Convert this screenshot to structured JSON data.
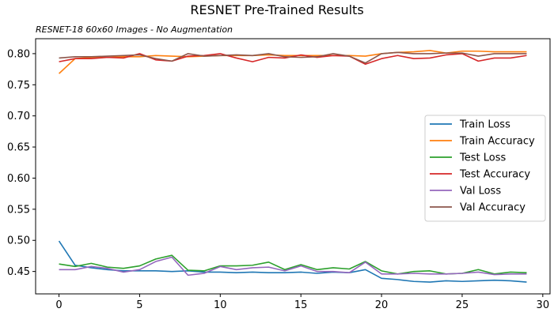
{
  "chart_data": {
    "type": "line",
    "title": "RESNET Pre-Trained Results",
    "subtitle": "RESNET-18 60x60 Images - No Augmentation",
    "xlabel": "",
    "ylabel": "",
    "xlim": [
      -1.45,
      30.45
    ],
    "ylim": [
      0.414,
      0.824
    ],
    "xticks": [
      0,
      5,
      10,
      15,
      20,
      25,
      30
    ],
    "yticks": [
      0.45,
      0.5,
      0.55,
      0.6,
      0.65,
      0.7,
      0.75,
      0.8
    ],
    "grid": false,
    "legend_position": "center-right",
    "x": [
      0,
      1,
      2,
      3,
      4,
      5,
      6,
      7,
      8,
      9,
      10,
      11,
      12,
      13,
      14,
      15,
      16,
      17,
      18,
      19,
      20,
      21,
      22,
      23,
      24,
      25,
      26,
      27,
      28,
      29
    ],
    "series": [
      {
        "name": "Train Loss",
        "color": "#1f77b4",
        "values": [
          0.499,
          0.46,
          0.456,
          0.453,
          0.451,
          0.451,
          0.451,
          0.45,
          0.451,
          0.449,
          0.449,
          0.448,
          0.449,
          0.448,
          0.448,
          0.449,
          0.447,
          0.449,
          0.448,
          0.453,
          0.439,
          0.437,
          0.434,
          0.433,
          0.435,
          0.434,
          0.435,
          0.436,
          0.435,
          0.433
        ]
      },
      {
        "name": "Train Accuracy",
        "color": "#ff7f0e",
        "values": [
          0.768,
          0.792,
          0.794,
          0.794,
          0.795,
          0.795,
          0.797,
          0.796,
          0.795,
          0.796,
          0.797,
          0.797,
          0.797,
          0.798,
          0.797,
          0.797,
          0.797,
          0.797,
          0.797,
          0.796,
          0.8,
          0.802,
          0.803,
          0.805,
          0.801,
          0.804,
          0.804,
          0.803,
          0.803,
          0.803
        ]
      },
      {
        "name": "Test Loss",
        "color": "#2ca02c",
        "values": [
          0.462,
          0.458,
          0.463,
          0.457,
          0.455,
          0.459,
          0.47,
          0.476,
          0.452,
          0.451,
          0.459,
          0.459,
          0.46,
          0.465,
          0.453,
          0.461,
          0.453,
          0.456,
          0.454,
          0.466,
          0.451,
          0.446,
          0.45,
          0.451,
          0.446,
          0.447,
          0.453,
          0.446,
          0.449,
          0.448
        ]
      },
      {
        "name": "Test Accuracy",
        "color": "#d62728",
        "values": [
          0.787,
          0.792,
          0.792,
          0.794,
          0.793,
          0.8,
          0.79,
          0.788,
          0.796,
          0.797,
          0.8,
          0.793,
          0.787,
          0.794,
          0.793,
          0.798,
          0.794,
          0.797,
          0.796,
          0.783,
          0.792,
          0.797,
          0.792,
          0.793,
          0.798,
          0.8,
          0.788,
          0.793,
          0.793,
          0.797
        ]
      },
      {
        "name": "Val Loss",
        "color": "#9467bd",
        "values": [
          0.453,
          0.453,
          0.458,
          0.455,
          0.449,
          0.453,
          0.466,
          0.473,
          0.444,
          0.447,
          0.458,
          0.453,
          0.456,
          0.457,
          0.451,
          0.459,
          0.45,
          0.45,
          0.448,
          0.465,
          0.446,
          0.446,
          0.447,
          0.446,
          0.446,
          0.447,
          0.449,
          0.445,
          0.446,
          0.446
        ]
      },
      {
        "name": "Val Accuracy",
        "color": "#8c564b",
        "values": [
          0.793,
          0.795,
          0.795,
          0.796,
          0.797,
          0.798,
          0.792,
          0.788,
          0.8,
          0.796,
          0.797,
          0.798,
          0.797,
          0.8,
          0.795,
          0.794,
          0.795,
          0.8,
          0.796,
          0.785,
          0.8,
          0.802,
          0.8,
          0.8,
          0.801,
          0.801,
          0.796,
          0.8,
          0.8,
          0.8
        ]
      }
    ]
  }
}
